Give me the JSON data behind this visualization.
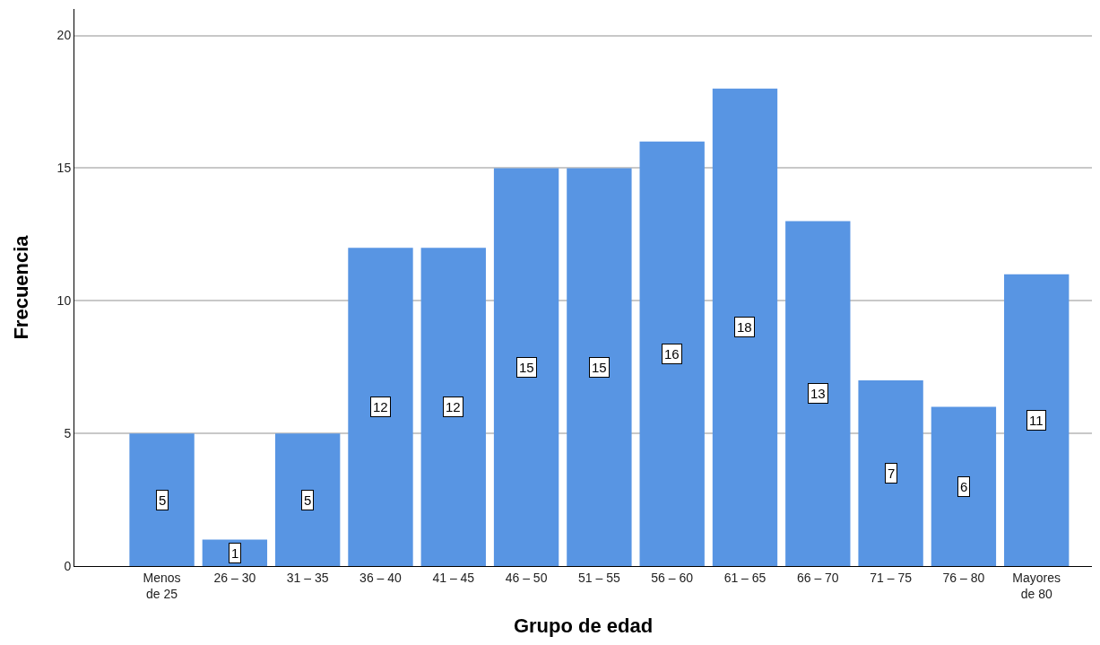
{
  "chart_data": {
    "type": "bar",
    "xlabel": "Grupo de edad",
    "ylabel": "Frecuencia",
    "categories": [
      "Menos de 25",
      "26 – 30",
      "31 – 35",
      "36 – 40",
      "41 – 45",
      "46 – 50",
      "51 – 55",
      "56 – 60",
      "61 – 65",
      "66 – 70",
      "71 – 75",
      "76 – 80",
      "Mayores de 80"
    ],
    "values": [
      5,
      1,
      5,
      12,
      12,
      15,
      15,
      16,
      18,
      13,
      7,
      6,
      11
    ],
    "color": "#5895e3",
    "ylim": [
      0,
      21
    ],
    "yticks": [
      0,
      5,
      10,
      15,
      20
    ],
    "grid": "y",
    "data_labels": true
  }
}
